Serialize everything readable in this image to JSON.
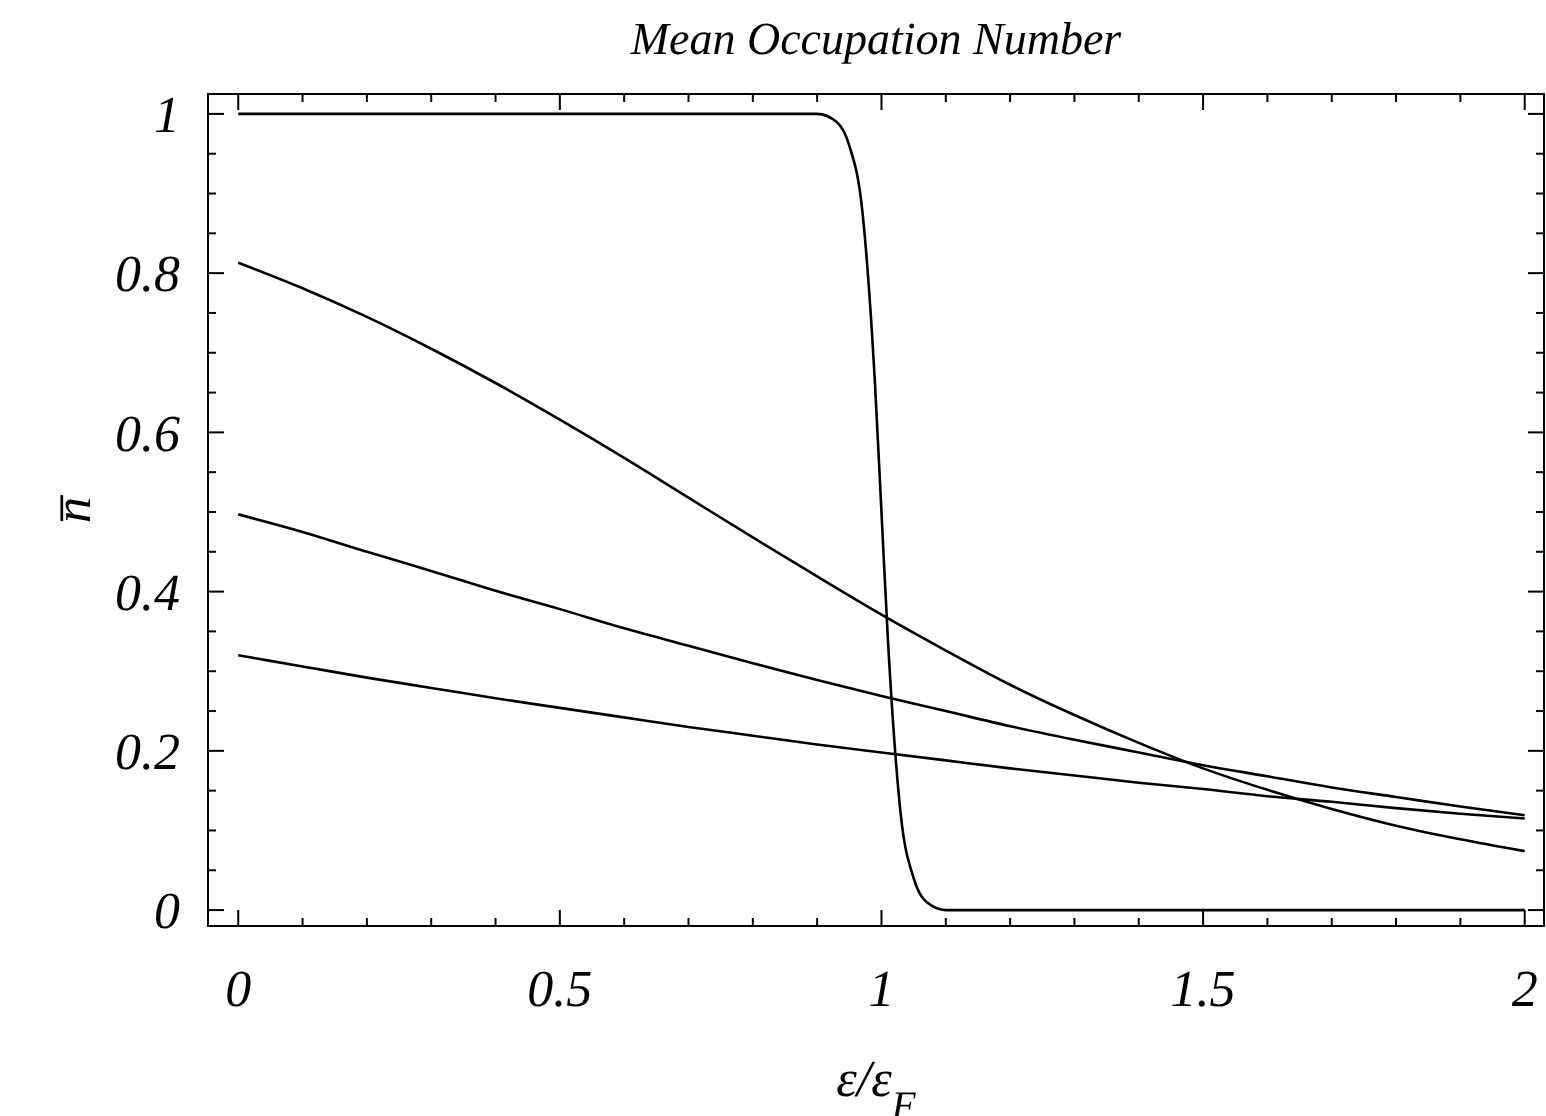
{
  "chart_data": {
    "type": "line",
    "title": "Mean Occupation Number",
    "xlabel": "ε/ε$_{F}$",
    "ylabel": "n̅",
    "x": [
      0,
      0.1,
      0.2,
      0.3,
      0.4,
      0.5,
      0.6,
      0.7,
      0.8,
      0.9,
      1,
      1.1,
      1.2,
      1.3,
      1.4,
      1.5,
      1.6,
      1.7,
      1.8,
      1.9,
      2
    ],
    "series": [
      {
        "color": "#000000",
        "x": [
          0,
          0.9,
          0.93,
          0.95,
          0.97,
          0.99,
          1,
          1.01,
          1.03,
          1.05,
          1.07,
          1.1,
          2
        ],
        "values": [
          1,
          1,
          0.99,
          0.96,
          0.88,
          0.66,
          0.5,
          0.34,
          0.12,
          0.04,
          0.01,
          0,
          0
        ]
      },
      {
        "color": "#000000",
        "values": [
          0.813,
          0.781,
          0.745,
          0.705,
          0.662,
          0.616,
          0.568,
          0.518,
          0.468,
          0.419,
          0.371,
          0.326,
          0.283,
          0.245,
          0.21,
          0.178,
          0.151,
          0.127,
          0.106,
          0.089,
          0.074
        ]
      },
      {
        "color": "#000000",
        "values": [
          0.497,
          0.475,
          0.45,
          0.426,
          0.401,
          0.378,
          0.354,
          0.332,
          0.31,
          0.289,
          0.269,
          0.25,
          0.231,
          0.214,
          0.198,
          0.182,
          0.168,
          0.154,
          0.142,
          0.13,
          0.119
        ]
      },
      {
        "color": "#000000",
        "values": [
          0.32,
          0.306,
          0.292,
          0.279,
          0.266,
          0.254,
          0.242,
          0.23,
          0.219,
          0.208,
          0.198,
          0.188,
          0.178,
          0.169,
          0.16,
          0.152,
          0.143,
          0.136,
          0.128,
          0.121,
          0.115
        ]
      }
    ],
    "xlim": [
      -0.047,
      2.03
    ],
    "ylim": [
      -0.02,
      1.025
    ],
    "xticks": [
      0,
      {
        "value": 0.1,
        "label": null
      },
      {
        "value": 0.2,
        "label": null
      },
      {
        "value": 0.3,
        "label": null
      },
      {
        "value": 0.4,
        "label": null
      },
      0.5,
      {
        "value": 0.6,
        "label": null
      },
      {
        "value": 0.7,
        "label": null
      },
      {
        "value": 0.8,
        "label": null
      },
      {
        "value": 0.9,
        "label": null
      },
      1,
      {
        "value": 1.1,
        "label": null
      },
      {
        "value": 1.2,
        "label": null
      },
      {
        "value": 1.3,
        "label": null
      },
      {
        "value": 1.4,
        "label": null
      },
      1.5,
      {
        "value": 1.6,
        "label": null
      },
      {
        "value": 1.7,
        "label": null
      },
      {
        "value": 1.8,
        "label": null
      },
      {
        "value": 1.9,
        "label": null
      },
      2
    ],
    "yticks": [
      0,
      {
        "value": 0.05,
        "label": null
      },
      {
        "value": 0.1,
        "label": null
      },
      {
        "value": 0.15,
        "label": null
      },
      0.2,
      {
        "value": 0.25,
        "label": null
      },
      {
        "value": 0.3,
        "label": null
      },
      {
        "value": 0.35,
        "label": null
      },
      0.4,
      {
        "value": 0.45,
        "label": null
      },
      {
        "value": 0.5,
        "label": null
      },
      {
        "value": 0.55,
        "label": null
      },
      0.6,
      {
        "value": 0.65,
        "label": null
      },
      {
        "value": 0.7,
        "label": null
      },
      {
        "value": 0.75,
        "label": null
      },
      0.8,
      {
        "value": 0.85,
        "label": null
      },
      {
        "value": 0.9,
        "label": null
      },
      {
        "value": 0.95,
        "label": null
      },
      1
    ],
    "grid": false,
    "marker": "none",
    "line_style": "solid"
  }
}
